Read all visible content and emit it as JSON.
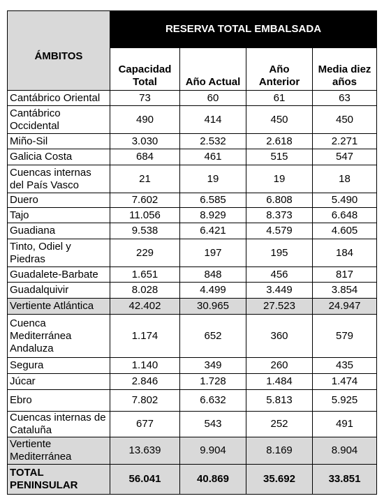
{
  "table": {
    "title": "RESERVA TOTAL EMBALSADA",
    "header": [
      "ÁMBITOS",
      "Capacidad Total",
      "Año Actual",
      "Año Anterior",
      "Media diez años"
    ],
    "rows": [
      [
        "Cantábrico Oriental",
        "73",
        "60",
        "61",
        "63"
      ],
      [
        "Cantábrico Occidental",
        "490",
        "414",
        "450",
        "450"
      ],
      [
        "Miño-Sil",
        "3.030",
        "2.532",
        "2.618",
        "2.271"
      ],
      [
        "Galicia Costa",
        "684",
        "461",
        "515",
        "547"
      ],
      [
        "Cuencas internas del País Vasco",
        "21",
        "19",
        "19",
        "18"
      ],
      [
        "Duero",
        "7.602",
        "6.585",
        "6.808",
        "5.490"
      ],
      [
        "Tajo",
        "11.056",
        "8.929",
        "8.373",
        "6.648"
      ],
      [
        "Guadiana",
        "9.538",
        "6.421",
        "4.579",
        "4.605"
      ],
      [
        "Tinto, Odiel y Piedras",
        "229",
        "197",
        "195",
        "184"
      ],
      [
        "Guadalete-Barbate",
        "1.651",
        "848",
        "456",
        "817"
      ],
      [
        "Guadalquivir",
        "8.028",
        "4.499",
        "3.449",
        "3.854"
      ],
      [
        "Vertiente Atlántica",
        "42.402",
        "30.965",
        "27.523",
        "24.947"
      ],
      [
        "Cuenca Mediterránea Andaluza",
        "1.174",
        "652",
        "360",
        "579"
      ],
      [
        "Segura",
        "1.140",
        "349",
        "260",
        "435"
      ],
      [
        "Júcar",
        "2.846",
        "1.728",
        "1.484",
        "1.474"
      ],
      [
        "Ebro",
        "7.802",
        "6.632",
        "5.813",
        "5.925"
      ],
      [
        "Cuencas internas de Cataluña",
        "677",
        "543",
        "252",
        "491"
      ],
      [
        "Vertiente Mediterránea",
        "13.639",
        "9.904",
        "8.169",
        "8.904"
      ],
      [
        "TOTAL PENINSULAR",
        "56.041",
        "40.869",
        "35.692",
        "33.851"
      ]
    ]
  }
}
